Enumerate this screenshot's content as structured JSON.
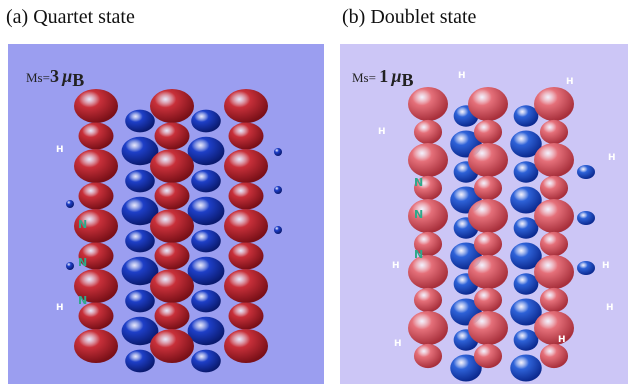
{
  "figure": {
    "panel_a": {
      "caption": "(a) Quartet state",
      "ms_prefix": "Ms=",
      "ms_value": "3",
      "ms_unit": "μ",
      "ms_sub": "B",
      "colors": {
        "background": "#9b9ef0",
        "positive": "#c8303a",
        "negative": "#1e3fc8",
        "nitrogen": "#2fa88a"
      }
    },
    "panel_b": {
      "caption": "(b) Doublet state",
      "ms_prefix": "Ms= ",
      "ms_value": "1",
      "ms_unit": "μ",
      "ms_sub": "B",
      "colors": {
        "background": "#ccc6f6",
        "positive": "#e5707a",
        "negative": "#2e62d8",
        "nitrogen": "#2fa88a"
      }
    },
    "atom_labels": {
      "hydrogen": "H",
      "nitrogen": "N"
    }
  }
}
